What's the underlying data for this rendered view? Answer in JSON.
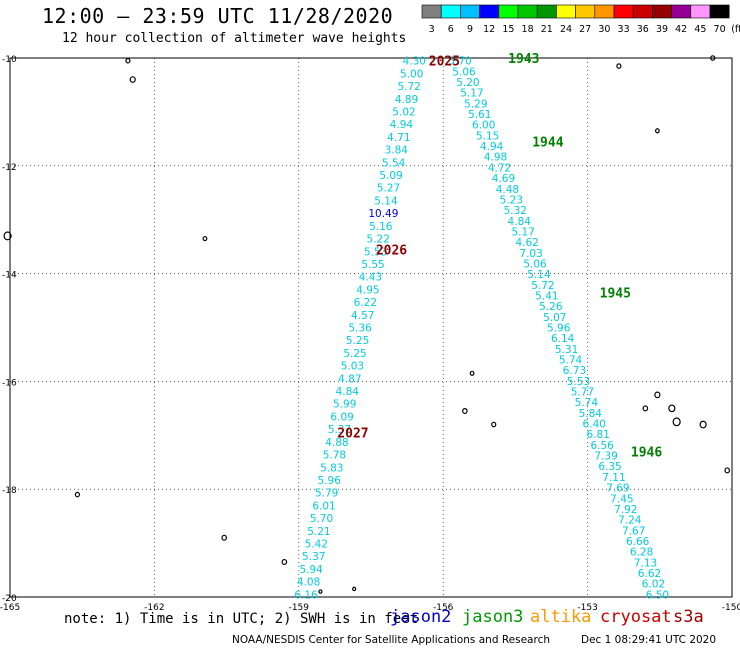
{
  "title": "12:00 – 23:59 UTC 11/28/2020",
  "subtitle": "12 hour collection of altimeter wave heights",
  "legend": {
    "labels": [
      "3",
      "6",
      "9",
      "12",
      "15",
      "18",
      "21",
      "24",
      "27",
      "30",
      "33",
      "36",
      "39",
      "42",
      "45",
      "70"
    ],
    "unit": "(ft)",
    "colors": [
      "#808080",
      "#00ffff",
      "#00bfff",
      "#0000ff",
      "#00ff00",
      "#00c800",
      "#009600",
      "#ffff00",
      "#ffc800",
      "#ff9600",
      "#ff0000",
      "#c80000",
      "#960000",
      "#960096",
      "#ff96ff",
      "#000000"
    ]
  },
  "footer": {
    "note": "note: 1) Time is in UTC; 2) SWH is in feet",
    "missions": [
      {
        "name": "jason2",
        "color": "#0000cc"
      },
      {
        "name": "jason3",
        "color": "#009900"
      },
      {
        "name": "altika",
        "color": "#ff9900"
      },
      {
        "name": "cryosat",
        "color": "#cc0000"
      },
      {
        "name": "s3a",
        "color": "#990000"
      }
    ],
    "credit": "NOAA/NESDIS Center for Satellite Applications and Research",
    "timestamp": "Dec  1 08:29:41 UTC 2020"
  },
  "chart_data": {
    "type": "scatter",
    "x_ticks": [
      "-165",
      "-162",
      "-159",
      "-156",
      "-153",
      "-150"
    ],
    "y_ticks": [
      "-10",
      "-12",
      "-14",
      "-16",
      "-18",
      "-20"
    ],
    "xlim": [
      -165,
      -150
    ],
    "ylim": [
      -20,
      -10
    ],
    "grid": true,
    "track_a": {
      "lon_start": -156.6,
      "lat_start": -10.05,
      "lon_end": -158.85,
      "lat_end": -19.95,
      "values": [
        "4.30",
        "5.00",
        "5.72",
        "4.89",
        "5.02",
        "4.94",
        "4.71",
        "3.84",
        "5.54",
        "5.09",
        "5.27",
        "5.14",
        "10.49",
        "5.16",
        "5.22",
        "5.53",
        "5.55",
        "4.43",
        "4.95",
        "6.22",
        "4.57",
        "5.36",
        "5.25",
        "5.25",
        "5.03",
        "4.87",
        "4.84",
        "5.99",
        "6.09",
        "5.37",
        "4.88",
        "5.78",
        "5.83",
        "5.96",
        "5.79",
        "6.01",
        "5.70",
        "5.21",
        "5.42",
        "5.37",
        "5.94",
        "4.08",
        "6.16"
      ],
      "colors": {
        "10.49": "#0000ff"
      }
    },
    "track_b": {
      "lon_start": -155.65,
      "lat_start": -10.05,
      "lon_end": -151.55,
      "lat_end": -19.95,
      "values": [
        "5.70",
        "5.06",
        "5.20",
        "5.17",
        "5.29",
        "5.61",
        "6.00",
        "5.15",
        "4.94",
        "4.98",
        "4.72",
        "4.69",
        "4.48",
        "5.23",
        "5.32",
        "4.84",
        "5.17",
        "4.62",
        "7.03",
        "5.06",
        "5.14",
        "5.72",
        "5.41",
        "5.26",
        "5.07",
        "5.96",
        "6.14",
        "5.31",
        "5.74",
        "6.73",
        "5.53",
        "5.77",
        "5.74",
        "5.84",
        "6.40",
        "6.81",
        "6.56",
        "7.39",
        "6.35",
        "7.11",
        "7.69",
        "7.45",
        "7.92",
        "7.24",
        "7.67",
        "6.66",
        "6.28",
        "7.13",
        "6.62",
        "6.02",
        "6.50"
      ]
    },
    "time_labels": [
      {
        "text": "2025",
        "lon": -156.3,
        "lat": -10.05,
        "color": "#8b0000"
      },
      {
        "text": "1943",
        "lon": -154.65,
        "lat": -10.0,
        "color": "#008000"
      },
      {
        "text": "1944",
        "lon": -154.15,
        "lat": -11.55,
        "color": "#008000"
      },
      {
        "text": "2026",
        "lon": -157.4,
        "lat": -13.55,
        "color": "#8b0000"
      },
      {
        "text": "1945",
        "lon": -152.75,
        "lat": -14.35,
        "color": "#008000"
      },
      {
        "text": "2027",
        "lon": -158.2,
        "lat": -16.95,
        "color": "#8b0000"
      },
      {
        "text": "1946",
        "lon": -152.1,
        "lat": -17.3,
        "color": "#008000"
      }
    ],
    "text_color": "#00ccdd"
  }
}
